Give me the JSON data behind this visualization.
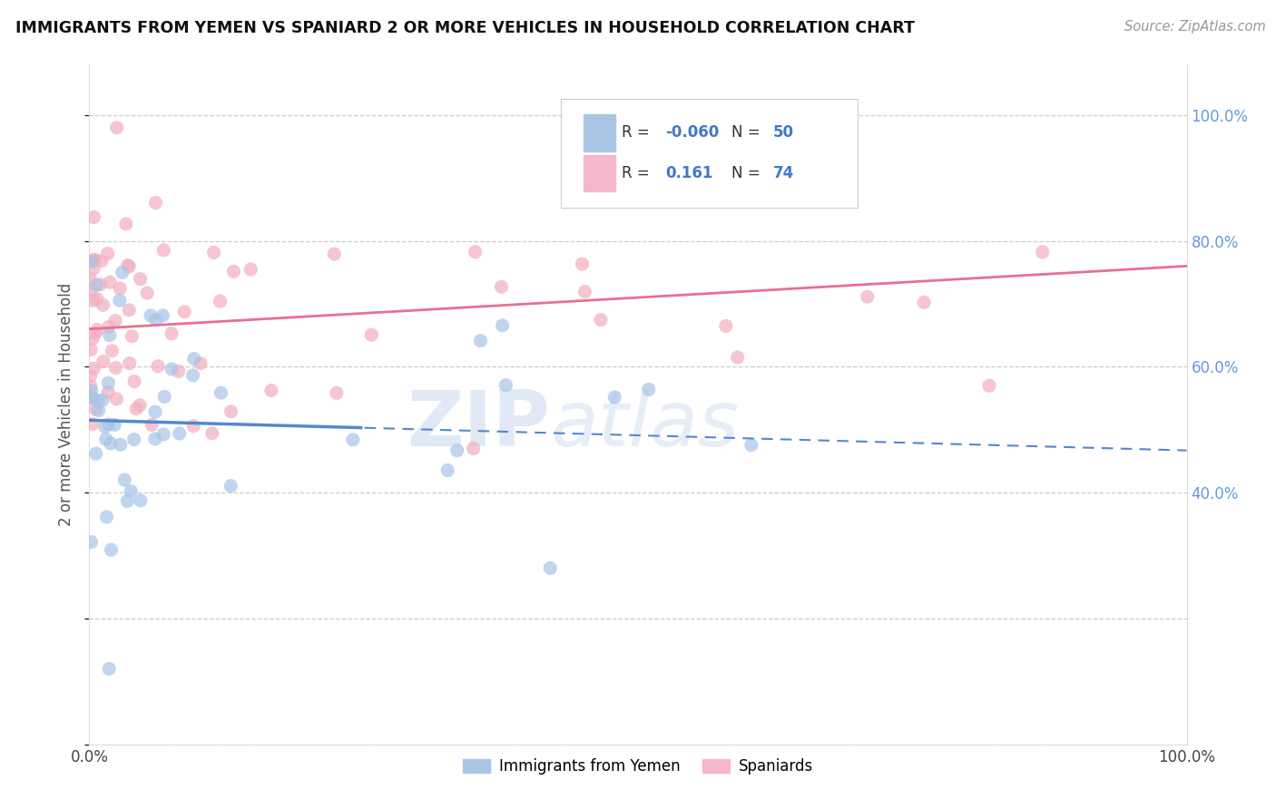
{
  "title": "IMMIGRANTS FROM YEMEN VS SPANIARD 2 OR MORE VEHICLES IN HOUSEHOLD CORRELATION CHART",
  "source_text": "Source: ZipAtlas.com",
  "ylabel": "2 or more Vehicles in Household",
  "legend_label1": "Immigrants from Yemen",
  "legend_label2": "Spaniards",
  "R1": "-0.060",
  "N1": "50",
  "R2": "0.161",
  "N2": "74",
  "color1": "#a8c4e8",
  "color2": "#f2afc0",
  "line_color1": "#5588cc",
  "line_color2": "#e87090",
  "watermark_zip": "ZIP",
  "watermark_atlas": "atlas",
  "background_color": "#ffffff",
  "grid_color": "#cccccc",
  "right_tick_color": "#6699dd",
  "ytick_right": [
    1.0,
    0.8,
    0.6,
    0.4
  ],
  "ytick_right_labels": [
    "100.0%",
    "80.0%",
    "60.0%",
    "40.0%"
  ]
}
